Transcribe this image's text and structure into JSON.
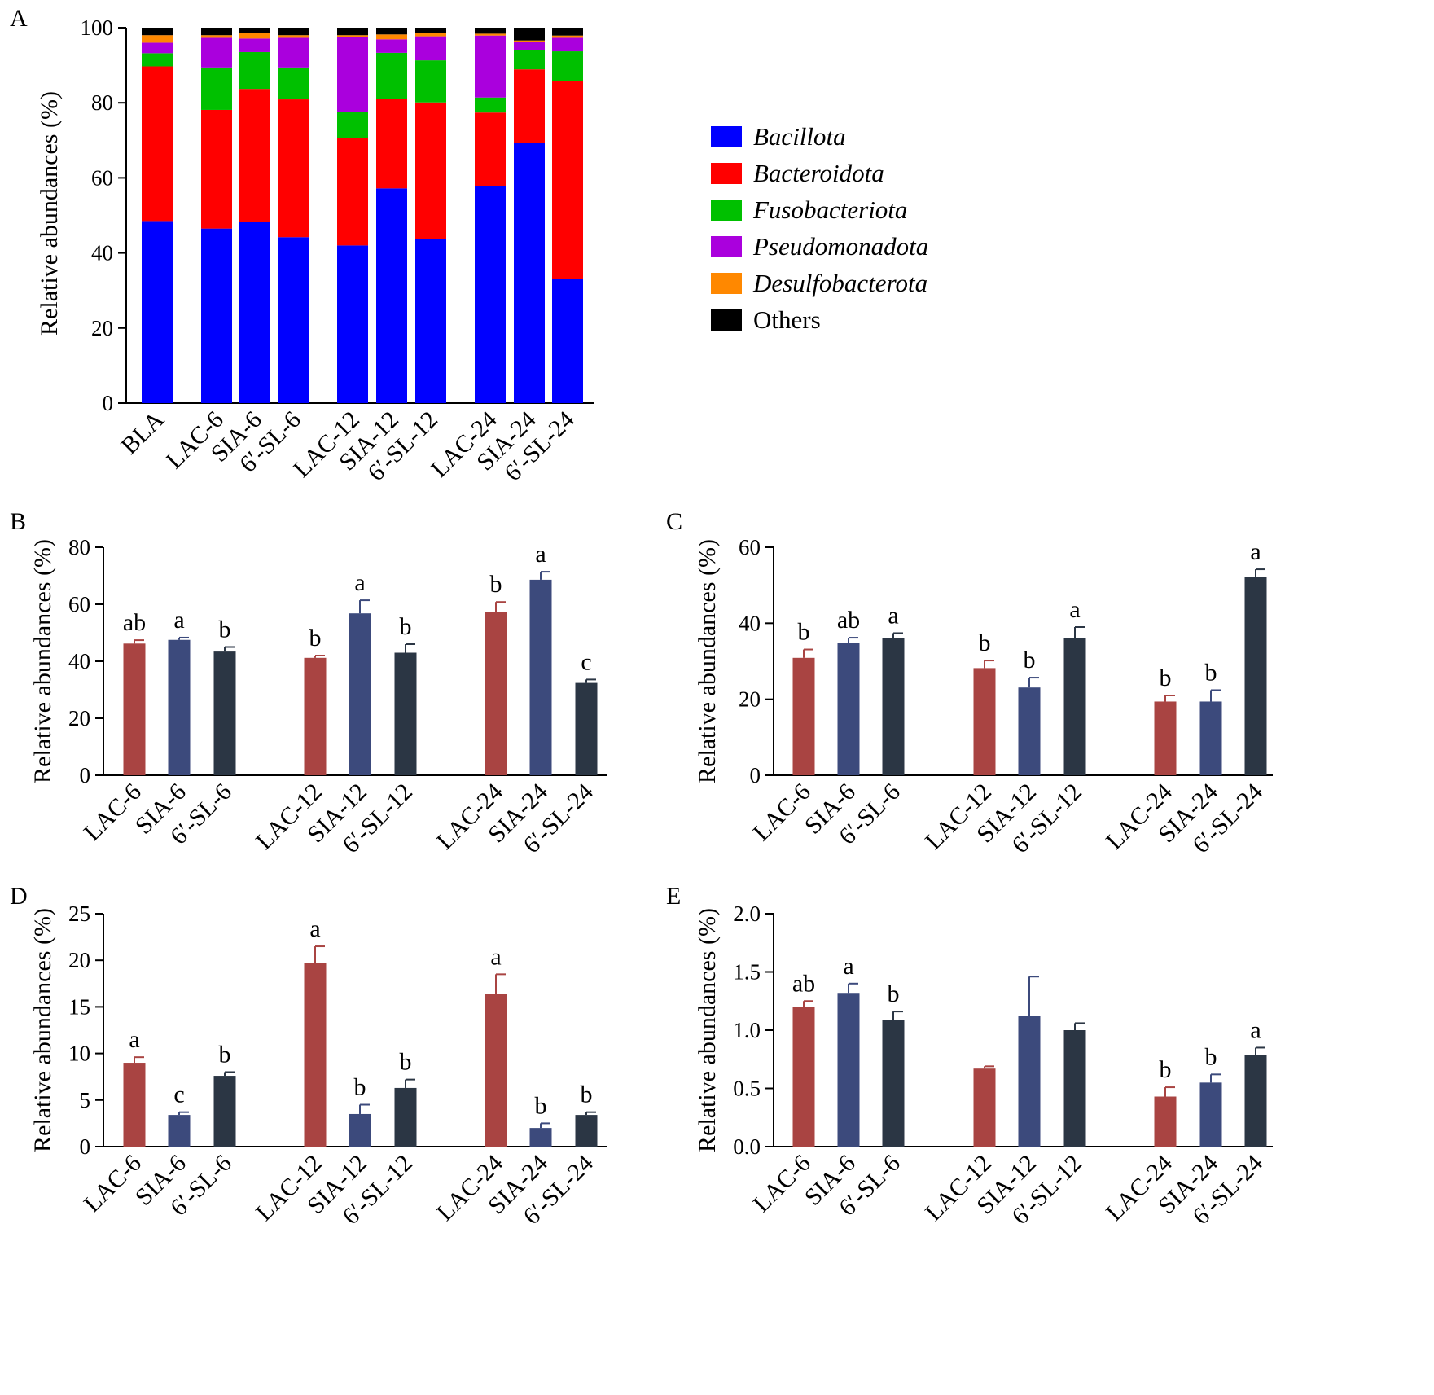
{
  "colors": {
    "Bacillota": "#0000ff",
    "Bacteroidota": "#ff0000",
    "Fusobacteriota": "#00c000",
    "Pseudomonadota": "#aa00dd",
    "Desulfobacterota": "#ff8800",
    "Others": "#000000",
    "LAC": "#a94442",
    "SIA": "#3c4a7c",
    "SL": "#2b3644"
  },
  "chart_data": [
    {
      "panel": "A",
      "type": "bar",
      "stacked": true,
      "ylabel": "Relative abundances (%)",
      "ylim": [
        0,
        100
      ],
      "yticks": [
        "0",
        "20",
        "40",
        "60",
        "80",
        "100"
      ],
      "categories": [
        "BLA",
        "LAC-6",
        "SIA-6",
        "6′-SL-6",
        "LAC-12",
        "SIA-12",
        "6′-SL-12",
        "LAC-24",
        "SIA-24",
        "6′-SL-24"
      ],
      "legend_position": "right",
      "series": [
        {
          "name": "Bacillota",
          "italic": true,
          "values": [
            48.5,
            46.5,
            48.2,
            44.2,
            42.0,
            57.2,
            43.6,
            57.7,
            69.2,
            33.0
          ]
        },
        {
          "name": "Bacteroidota",
          "italic": true,
          "values": [
            41.2,
            31.6,
            35.5,
            36.7,
            28.6,
            23.8,
            36.5,
            19.7,
            19.7,
            52.8
          ]
        },
        {
          "name": "Fusobacteriota",
          "italic": true,
          "values": [
            3.5,
            11.3,
            9.8,
            8.5,
            7.0,
            12.3,
            11.2,
            4.0,
            5.1,
            7.9
          ]
        },
        {
          "name": "Pseudomonadota",
          "italic": true,
          "values": [
            2.8,
            7.9,
            3.6,
            7.9,
            19.8,
            3.6,
            6.4,
            16.5,
            2.1,
            3.6
          ]
        },
        {
          "name": "Desulfobacterota",
          "italic": true,
          "values": [
            2.0,
            0.7,
            1.4,
            0.7,
            0.6,
            1.3,
            0.8,
            0.5,
            0.5,
            0.6
          ]
        },
        {
          "name": "Others",
          "italic": false,
          "values": [
            2.0,
            2.0,
            1.5,
            2.0,
            2.0,
            1.8,
            1.5,
            1.6,
            3.4,
            2.1
          ]
        }
      ]
    },
    {
      "panel": "B",
      "type": "bar",
      "ylabel": "Relative abundances (%)",
      "ylim": [
        0,
        80
      ],
      "yticks": [
        "0",
        "20",
        "40",
        "60",
        "80"
      ],
      "categories": [
        "LAC-6",
        "SIA-6",
        "6′-SL-6",
        "LAC-12",
        "SIA-12",
        "6′-SL-12",
        "LAC-24",
        "SIA-24",
        "6′-SL-24"
      ],
      "values": [
        46.2,
        47.5,
        43.4,
        41.2,
        56.8,
        43.0,
        57.2,
        68.6,
        32.4
      ],
      "errors": [
        1.2,
        0.8,
        1.6,
        0.8,
        4.6,
        3.0,
        3.6,
        2.8,
        1.2
      ],
      "labels": [
        "ab",
        "a",
        "b",
        "b",
        "a",
        "b",
        "b",
        "a",
        "c"
      ]
    },
    {
      "panel": "C",
      "type": "bar",
      "ylabel": "Relative abundances (%)",
      "ylim": [
        0,
        60
      ],
      "yticks": [
        "0",
        "20",
        "40",
        "60"
      ],
      "categories": [
        "LAC-6",
        "SIA-6",
        "6′-SL-6",
        "LAC-12",
        "SIA-12",
        "6′-SL-12",
        "LAC-24",
        "SIA-24",
        "6′-SL-24"
      ],
      "values": [
        30.9,
        34.8,
        36.2,
        28.2,
        23.1,
        36.0,
        19.4,
        19.4,
        52.2
      ],
      "errors": [
        2.2,
        1.4,
        1.2,
        2.0,
        2.6,
        3.0,
        1.6,
        3.0,
        2.0
      ],
      "labels": [
        "b",
        "ab",
        "a",
        "b",
        "b",
        "a",
        "b",
        "b",
        "a"
      ]
    },
    {
      "panel": "D",
      "type": "bar",
      "ylabel": "Relative abundances (%)",
      "ylim": [
        0,
        25
      ],
      "yticks": [
        "0",
        "5",
        "10",
        "15",
        "20",
        "25"
      ],
      "categories": [
        "LAC-6",
        "SIA-6",
        "6′-SL-6",
        "LAC-12",
        "SIA-12",
        "6′-SL-12",
        "LAC-24",
        "SIA-24",
        "6′-SL-24"
      ],
      "values": [
        9.0,
        3.4,
        7.6,
        19.7,
        3.5,
        6.3,
        16.4,
        2.0,
        3.4
      ],
      "errors": [
        0.6,
        0.3,
        0.4,
        1.8,
        1.0,
        0.9,
        2.1,
        0.5,
        0.3
      ],
      "labels": [
        "a",
        "c",
        "b",
        "a",
        "b",
        "b",
        "a",
        "b",
        "b"
      ]
    },
    {
      "panel": "E",
      "type": "bar",
      "ylabel": "Relative abundances (%)",
      "ylim": [
        0,
        2.0
      ],
      "yticks": [
        "0.0",
        "0.5",
        "1.0",
        "1.5",
        "2.0"
      ],
      "categories": [
        "LAC-6",
        "SIA-6",
        "6′-SL-6",
        "LAC-12",
        "SIA-12",
        "6′-SL-12",
        "LAC-24",
        "SIA-24",
        "6′-SL-24"
      ],
      "values": [
        1.2,
        1.32,
        1.09,
        0.67,
        1.12,
        1.0,
        0.43,
        0.55,
        0.79
      ],
      "errors": [
        0.05,
        0.08,
        0.07,
        0.02,
        0.34,
        0.06,
        0.08,
        0.07,
        0.06
      ],
      "labels": [
        "ab",
        "a",
        "b",
        "",
        "",
        "",
        "b",
        "b",
        "a"
      ]
    }
  ]
}
